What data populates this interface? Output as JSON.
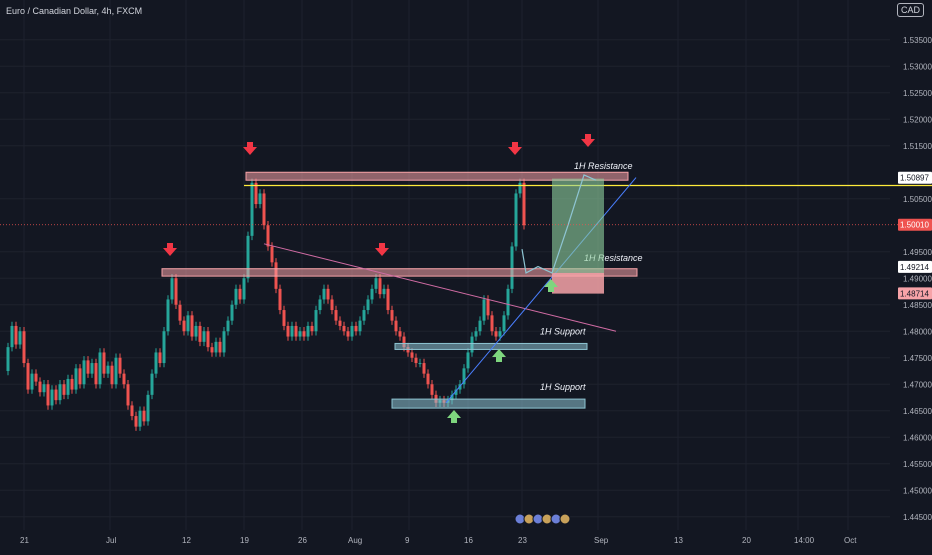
{
  "header": {
    "title": "Euro / Canadian Dollar, 4h, FXCM",
    "currency_button": "CAD"
  },
  "colors": {
    "background": "#131722",
    "up": "#26a69a",
    "down": "#ef5350",
    "resistance_zone": "#f7a3a8",
    "support_zone": "#8ec5d3",
    "yellow_line": "#ffeb3b",
    "trend_line": "#d16ca4",
    "arrow_red": "#f23645",
    "arrow_green": "#7ed67e",
    "projection_green": "#8fd19e",
    "projection_red": "#f7a3a8",
    "blue_line": "#2962ff"
  },
  "icons": {
    "down_arrow": "red-down-arrow-icon",
    "up_arrow": "green-up-arrow-icon"
  },
  "chart_data": {
    "type": "candlestick",
    "instrument": "Euro / Canadian Dollar",
    "timeframe": "4h",
    "source": "FXCM",
    "ylim": [
      1.4425,
      1.5425
    ],
    "y_ticks": [
      "1.53500",
      "1.53000",
      "1.52500",
      "1.52000",
      "1.51500",
      "1.50500",
      "1.49500",
      "1.49000",
      "1.48500",
      "1.48000",
      "1.47500",
      "1.47000",
      "1.46500",
      "1.46000",
      "1.45500",
      "1.45000",
      "1.44500"
    ],
    "x_ticks": [
      "21",
      "Jul",
      "12",
      "19",
      "26",
      "Aug",
      "9",
      "16",
      "23",
      "Sep",
      "13",
      "20",
      "14:00",
      "Oct"
    ],
    "price_series": [
      [
        0,
        1.4725
      ],
      [
        4,
        1.477
      ],
      [
        8,
        1.481
      ],
      [
        12,
        1.4775
      ],
      [
        16,
        1.48
      ],
      [
        20,
        1.474
      ],
      [
        24,
        1.469
      ],
      [
        28,
        1.472
      ],
      [
        32,
        1.4705
      ],
      [
        36,
        1.4685
      ],
      [
        40,
        1.47
      ],
      [
        44,
        1.466
      ],
      [
        48,
        1.469
      ],
      [
        52,
        1.467
      ],
      [
        56,
        1.47
      ],
      [
        60,
        1.468
      ],
      [
        64,
        1.471
      ],
      [
        68,
        1.469
      ],
      [
        72,
        1.473
      ],
      [
        76,
        1.47
      ],
      [
        80,
        1.4745
      ],
      [
        84,
        1.472
      ],
      [
        88,
        1.474
      ],
      [
        92,
        1.47
      ],
      [
        96,
        1.476
      ],
      [
        100,
        1.472
      ],
      [
        104,
        1.4735
      ],
      [
        108,
        1.47
      ],
      [
        112,
        1.475
      ],
      [
        116,
        1.472
      ],
      [
        120,
        1.47
      ],
      [
        124,
        1.466
      ],
      [
        128,
        1.464
      ],
      [
        132,
        1.462
      ],
      [
        136,
        1.465
      ],
      [
        140,
        1.463
      ],
      [
        144,
        1.468
      ],
      [
        148,
        1.472
      ],
      [
        152,
        1.476
      ],
      [
        156,
        1.474
      ],
      [
        160,
        1.48
      ],
      [
        164,
        1.486
      ],
      [
        168,
        1.49
      ],
      [
        172,
        1.485
      ],
      [
        176,
        1.482
      ],
      [
        180,
        1.48
      ],
      [
        184,
        1.483
      ],
      [
        188,
        1.479
      ],
      [
        192,
        1.481
      ],
      [
        196,
        1.478
      ],
      [
        200,
        1.48
      ],
      [
        204,
        1.477
      ],
      [
        208,
        1.476
      ],
      [
        212,
        1.478
      ],
      [
        216,
        1.476
      ],
      [
        220,
        1.48
      ],
      [
        224,
        1.482
      ],
      [
        228,
        1.485
      ],
      [
        232,
        1.488
      ],
      [
        236,
        1.486
      ],
      [
        240,
        1.49
      ],
      [
        244,
        1.498
      ],
      [
        248,
        1.508
      ],
      [
        252,
        1.504
      ],
      [
        256,
        1.506
      ],
      [
        260,
        1.5
      ],
      [
        264,
        1.496
      ],
      [
        268,
        1.493
      ],
      [
        272,
        1.488
      ],
      [
        276,
        1.484
      ],
      [
        280,
        1.481
      ],
      [
        284,
        1.479
      ],
      [
        288,
        1.481
      ],
      [
        292,
        1.479
      ],
      [
        296,
        1.48
      ],
      [
        300,
        1.479
      ],
      [
        304,
        1.481
      ],
      [
        308,
        1.48
      ],
      [
        312,
        1.484
      ],
      [
        316,
        1.486
      ],
      [
        320,
        1.488
      ],
      [
        324,
        1.486
      ],
      [
        328,
        1.484
      ],
      [
        332,
        1.482
      ],
      [
        336,
        1.481
      ],
      [
        340,
        1.48
      ],
      [
        344,
        1.479
      ],
      [
        348,
        1.481
      ],
      [
        352,
        1.48
      ],
      [
        356,
        1.482
      ],
      [
        360,
        1.484
      ],
      [
        364,
        1.486
      ],
      [
        368,
        1.488
      ],
      [
        372,
        1.49
      ],
      [
        376,
        1.487
      ],
      [
        380,
        1.488
      ],
      [
        384,
        1.484
      ],
      [
        388,
        1.482
      ],
      [
        392,
        1.48
      ],
      [
        396,
        1.479
      ],
      [
        400,
        1.477
      ],
      [
        404,
        1.476
      ],
      [
        408,
        1.475
      ],
      [
        412,
        1.474
      ],
      [
        416,
        1.474
      ],
      [
        420,
        1.472
      ],
      [
        424,
        1.47
      ],
      [
        428,
        1.468
      ],
      [
        432,
        1.4665
      ],
      [
        436,
        1.467
      ],
      [
        440,
        1.4665
      ],
      [
        444,
        1.467
      ],
      [
        448,
        1.468
      ],
      [
        452,
        1.469
      ],
      [
        456,
        1.47
      ],
      [
        460,
        1.473
      ],
      [
        464,
        1.476
      ],
      [
        468,
        1.479
      ],
      [
        472,
        1.48
      ],
      [
        476,
        1.482
      ],
      [
        480,
        1.486
      ],
      [
        484,
        1.483
      ],
      [
        488,
        1.48
      ],
      [
        492,
        1.479
      ],
      [
        496,
        1.48
      ],
      [
        500,
        1.483
      ],
      [
        504,
        1.488
      ],
      [
        508,
        1.496
      ],
      [
        512,
        1.506
      ],
      [
        516,
        1.508
      ],
      [
        520,
        1.5
      ]
    ],
    "horizontal_line": 1.5075,
    "zones": [
      {
        "label": "1H Resistance",
        "y_top": 1.51,
        "y_bottom": 1.5085,
        "x_from": 246,
        "x_to": 628
      },
      {
        "label": "1H Resistance",
        "y_top": 1.4918,
        "y_bottom": 1.4904,
        "x_from": 162,
        "x_to": 637
      },
      {
        "label": "1H  Support",
        "y_top": 1.4777,
        "y_bottom": 1.4768,
        "x_from": 395,
        "x_to": 587
      },
      {
        "label": "1H  Support",
        "y_top": 1.4672,
        "y_bottom": 1.4655,
        "x_from": 392,
        "x_to": 585
      }
    ],
    "price_tags": [
      {
        "label": "1.50897",
        "value": 1.50897,
        "bg": "#ffffff",
        "fg": "#131722"
      },
      {
        "label": "1.50010",
        "value": 1.5001,
        "bg": "#ef5350",
        "fg": "#ffffff"
      },
      {
        "label": "1.49214",
        "value": 1.49214,
        "bg": "#ffffff",
        "fg": "#131722"
      },
      {
        "label": "1.48714",
        "value": 1.48714,
        "bg": "#f7a3a8",
        "fg": "#131722"
      }
    ]
  },
  "zone_labels": {
    "top_resistance": "1H Resistance",
    "mid_resistance": "1H Resistance",
    "upper_support": "1H  Support",
    "lower_support": "1H  Support"
  }
}
